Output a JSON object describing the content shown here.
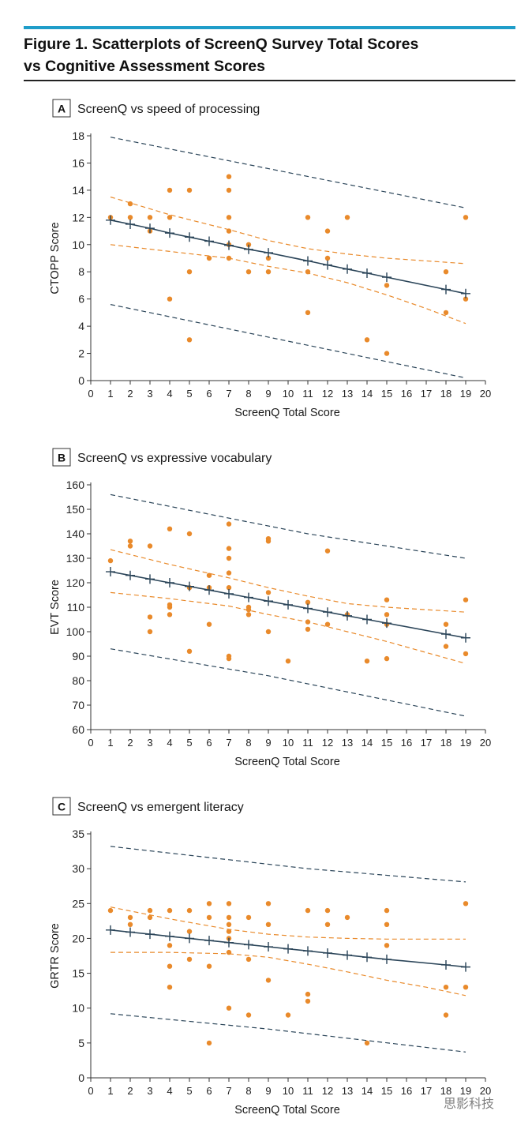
{
  "figure": {
    "title_line1": "Figure 1. Scatterplots of ScreenQ Survey Total Scores",
    "title_line2": "vs Cognitive Assessment Scores",
    "accent_color": "#1f9dc9"
  },
  "watermark": "思影科技",
  "colors": {
    "points": "#e98a2b",
    "fit_line": "#2b4559",
    "confidence_band": "#e98a2b",
    "prediction_band": "#2b4559"
  },
  "chart_data": [
    {
      "type": "scatter",
      "panel_label": "A",
      "title": "ScreenQ vs speed of processing",
      "xlabel": "ScreenQ Total Score",
      "ylabel": "CTOPP Score",
      "xlim": [
        0,
        20
      ],
      "ylim": [
        0,
        18
      ],
      "xticks": [
        0,
        1,
        2,
        3,
        4,
        5,
        6,
        7,
        8,
        9,
        10,
        11,
        12,
        13,
        14,
        15,
        16,
        17,
        18,
        19,
        20
      ],
      "yticks": [
        0,
        2,
        4,
        6,
        8,
        10,
        12,
        14,
        16,
        18
      ],
      "grid": false,
      "points": [
        [
          1,
          12
        ],
        [
          2,
          13
        ],
        [
          2,
          12
        ],
        [
          3,
          12
        ],
        [
          3,
          11
        ],
        [
          4,
          14
        ],
        [
          4,
          12
        ],
        [
          4,
          6
        ],
        [
          5,
          14
        ],
        [
          5,
          8
        ],
        [
          5,
          3
        ],
        [
          6,
          9
        ],
        [
          7,
          15
        ],
        [
          7,
          14
        ],
        [
          7,
          12
        ],
        [
          7,
          11
        ],
        [
          7,
          10
        ],
        [
          7,
          9
        ],
        [
          8,
          10
        ],
        [
          8,
          8
        ],
        [
          9,
          9
        ],
        [
          9,
          8
        ],
        [
          11,
          12
        ],
        [
          11,
          8
        ],
        [
          11,
          5
        ],
        [
          12,
          11
        ],
        [
          12,
          9
        ],
        [
          13,
          12
        ],
        [
          14,
          3
        ],
        [
          15,
          7
        ],
        [
          15,
          2
        ],
        [
          18,
          8
        ],
        [
          18,
          5
        ],
        [
          19,
          12
        ],
        [
          19,
          6
        ]
      ],
      "fit_line": {
        "x": [
          1,
          2,
          3,
          4,
          5,
          6,
          7,
          8,
          9,
          11,
          12,
          13,
          14,
          15,
          18,
          19
        ],
        "y": [
          11.8,
          11.5,
          11.2,
          10.85,
          10.55,
          10.25,
          9.95,
          9.65,
          9.4,
          8.8,
          8.5,
          8.2,
          7.9,
          7.6,
          6.7,
          6.4
        ]
      },
      "confidence_upper": {
        "x": [
          1,
          4,
          7,
          9,
          11,
          13,
          15,
          17,
          19
        ],
        "y": [
          13.5,
          12.2,
          11.1,
          10.3,
          9.7,
          9.3,
          9.0,
          8.8,
          8.6
        ]
      },
      "confidence_lower": {
        "x": [
          1,
          4,
          7,
          9,
          11,
          13,
          15,
          17,
          19
        ],
        "y": [
          10.0,
          9.5,
          9.0,
          8.4,
          7.9,
          7.2,
          6.3,
          5.3,
          4.2
        ]
      },
      "prediction_upper": {
        "x": [
          1,
          19
        ],
        "y": [
          17.9,
          12.7
        ]
      },
      "prediction_lower": {
        "x": [
          1,
          19
        ],
        "y": [
          5.6,
          0.2
        ]
      }
    },
    {
      "type": "scatter",
      "panel_label": "B",
      "title": "ScreenQ vs expressive vocabulary",
      "xlabel": "ScreenQ Total Score",
      "ylabel": "EVT Score",
      "xlim": [
        0,
        20
      ],
      "ylim": [
        60,
        160
      ],
      "xticks": [
        0,
        1,
        2,
        3,
        4,
        5,
        6,
        7,
        8,
        9,
        10,
        11,
        12,
        13,
        14,
        15,
        16,
        17,
        18,
        19,
        20
      ],
      "yticks": [
        60,
        70,
        80,
        90,
        100,
        110,
        120,
        130,
        140,
        150,
        160
      ],
      "grid": false,
      "points": [
        [
          1,
          129
        ],
        [
          2,
          137
        ],
        [
          2,
          135
        ],
        [
          3,
          135
        ],
        [
          3,
          106
        ],
        [
          3,
          100
        ],
        [
          4,
          142
        ],
        [
          4,
          111
        ],
        [
          4,
          110
        ],
        [
          4,
          107
        ],
        [
          5,
          140
        ],
        [
          5,
          118
        ],
        [
          5,
          92
        ],
        [
          6,
          123
        ],
        [
          6,
          118
        ],
        [
          6,
          103
        ],
        [
          7,
          144
        ],
        [
          7,
          134
        ],
        [
          7,
          130
        ],
        [
          7,
          124
        ],
        [
          7,
          118
        ],
        [
          7,
          90
        ],
        [
          7,
          89
        ],
        [
          8,
          110
        ],
        [
          8,
          109
        ],
        [
          8,
          107
        ],
        [
          9,
          138
        ],
        [
          9,
          137
        ],
        [
          9,
          116
        ],
        [
          9,
          100
        ],
        [
          10,
          88
        ],
        [
          11,
          112
        ],
        [
          11,
          104
        ],
        [
          11,
          101
        ],
        [
          12,
          133
        ],
        [
          12,
          103
        ],
        [
          13,
          107
        ],
        [
          14,
          88
        ],
        [
          15,
          113
        ],
        [
          15,
          107
        ],
        [
          15,
          103
        ],
        [
          15,
          89
        ],
        [
          18,
          103
        ],
        [
          18,
          94
        ],
        [
          19,
          113
        ],
        [
          19,
          91
        ]
      ],
      "fit_line": {
        "x": [
          1,
          2,
          3,
          4,
          5,
          6,
          7,
          8,
          9,
          10,
          11,
          12,
          13,
          14,
          15,
          18,
          19
        ],
        "y": [
          124.5,
          123,
          121.5,
          120,
          118.5,
          117,
          115.5,
          114,
          112.5,
          111,
          109.5,
          108,
          106.5,
          105,
          103.5,
          99,
          97.5
        ]
      },
      "confidence_upper": {
        "x": [
          1,
          4,
          7,
          9,
          11,
          13,
          15,
          17,
          19
        ],
        "y": [
          133.5,
          127.5,
          122,
          118,
          114.5,
          111.5,
          110,
          109,
          108
        ]
      },
      "confidence_lower": {
        "x": [
          1,
          4,
          7,
          9,
          11,
          13,
          15,
          17,
          19
        ],
        "y": [
          116,
          113.5,
          110.5,
          107,
          104,
          100,
          96,
          91.5,
          87
        ]
      },
      "prediction_upper": {
        "x": [
          1,
          11,
          19
        ],
        "y": [
          156,
          140,
          130
        ]
      },
      "prediction_lower": {
        "x": [
          1,
          9,
          19
        ],
        "y": [
          93,
          82,
          65.5
        ]
      }
    },
    {
      "type": "scatter",
      "panel_label": "C",
      "title": "ScreenQ vs emergent literacy",
      "xlabel": "ScreenQ Total Score",
      "ylabel": "GRTR Score",
      "xlim": [
        0,
        20
      ],
      "ylim": [
        0,
        35
      ],
      "xticks": [
        0,
        1,
        2,
        3,
        4,
        5,
        6,
        7,
        8,
        9,
        10,
        11,
        12,
        13,
        14,
        15,
        16,
        17,
        18,
        19,
        20
      ],
      "yticks": [
        0,
        5,
        10,
        15,
        20,
        25,
        30,
        35
      ],
      "grid": false,
      "points": [
        [
          1,
          24
        ],
        [
          2,
          23
        ],
        [
          2,
          22
        ],
        [
          3,
          24
        ],
        [
          3,
          23
        ],
        [
          4,
          24
        ],
        [
          4,
          19
        ],
        [
          4,
          16
        ],
        [
          4,
          13
        ],
        [
          5,
          24
        ],
        [
          5,
          21
        ],
        [
          5,
          17
        ],
        [
          6,
          25
        ],
        [
          6,
          23
        ],
        [
          6,
          16
        ],
        [
          6,
          5
        ],
        [
          7,
          25
        ],
        [
          7,
          23
        ],
        [
          7,
          22
        ],
        [
          7,
          21
        ],
        [
          7,
          20
        ],
        [
          7,
          18
        ],
        [
          7,
          10
        ],
        [
          8,
          23
        ],
        [
          8,
          17
        ],
        [
          8,
          9
        ],
        [
          9,
          25
        ],
        [
          9,
          22
        ],
        [
          9,
          14
        ],
        [
          10,
          9
        ],
        [
          11,
          24
        ],
        [
          11,
          12
        ],
        [
          11,
          11
        ],
        [
          12,
          24
        ],
        [
          12,
          22
        ],
        [
          13,
          23
        ],
        [
          14,
          5
        ],
        [
          15,
          24
        ],
        [
          15,
          22
        ],
        [
          15,
          19
        ],
        [
          18,
          13
        ],
        [
          18,
          9
        ],
        [
          19,
          25
        ],
        [
          19,
          13
        ]
      ],
      "fit_line": {
        "x": [
          1,
          2,
          3,
          4,
          5,
          6,
          7,
          8,
          9,
          10,
          11,
          12,
          13,
          14,
          15,
          18,
          19
        ],
        "y": [
          21.2,
          20.9,
          20.6,
          20.3,
          20.0,
          19.7,
          19.4,
          19.1,
          18.8,
          18.5,
          18.2,
          17.9,
          17.6,
          17.3,
          17.0,
          16.2,
          15.9
        ]
      },
      "confidence_upper": {
        "x": [
          1,
          4,
          7,
          9,
          11,
          13,
          15,
          17,
          19
        ],
        "y": [
          24.5,
          22.8,
          21.3,
          20.6,
          20.2,
          20.0,
          19.9,
          19.9,
          19.9
        ]
      },
      "confidence_lower": {
        "x": [
          1,
          4,
          7,
          9,
          11,
          13,
          15,
          17,
          19
        ],
        "y": [
          18.0,
          18.0,
          17.8,
          17.3,
          16.3,
          15.2,
          14.0,
          13.0,
          11.8
        ]
      },
      "prediction_upper": {
        "x": [
          1,
          11,
          19
        ],
        "y": [
          33.2,
          30.0,
          28.1
        ]
      },
      "prediction_lower": {
        "x": [
          1,
          9,
          19
        ],
        "y": [
          9.2,
          7.0,
          3.7
        ]
      }
    }
  ]
}
